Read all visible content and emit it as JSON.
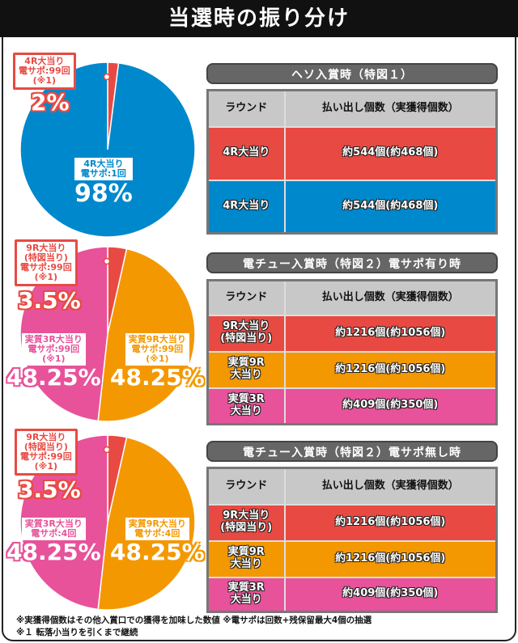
{
  "title": "当選時の振り分け",
  "colors": {
    "blue": "#0088cc",
    "red": "#e84a43",
    "orange": "#f39800",
    "pink": "#e8529a"
  },
  "chart_data": [
    {
      "type": "pie",
      "slices": [
        {
          "label": "4R大当り 電サポ:99回 (※1)",
          "value": 2,
          "pct_text": "2%",
          "color": "#e84a43"
        },
        {
          "label": "4R大当り 電サポ:1回",
          "value": 98,
          "pct_text": "98%",
          "color": "#0088cc"
        }
      ]
    },
    {
      "type": "pie",
      "slices": [
        {
          "label": "9R大当り (特図当り) 電サポ:99回 (※1)",
          "value": 3.5,
          "pct_text": "3.5%",
          "color": "#e84a43"
        },
        {
          "label": "実質9R大当り 電サポ:99回 (※1)",
          "value": 48.25,
          "pct_text": "48.25%",
          "color": "#f39800"
        },
        {
          "label": "実質3R大当り 電サポ:99回 (※1)",
          "value": 48.25,
          "pct_text": "48.25%",
          "color": "#e8529a"
        }
      ]
    },
    {
      "type": "pie",
      "slices": [
        {
          "label": "9R大当り (特図当り) 電サポ:99回 (※1)",
          "value": 3.5,
          "pct_text": "3.5%",
          "color": "#e84a43"
        },
        {
          "label": "実質9R大当り 電サポ:4回",
          "value": 48.25,
          "pct_text": "48.25%",
          "color": "#f39800"
        },
        {
          "label": "実質3R大当り 電サポ:4回",
          "value": 48.25,
          "pct_text": "48.25%",
          "color": "#e8529a"
        }
      ]
    }
  ],
  "pie1": {
    "red": [
      "4R大当り",
      "電サポ:99回",
      "(※1)"
    ],
    "red_pct": "2%",
    "blue": [
      "4R大当り",
      "電サポ:1回"
    ],
    "blue_pct": "98%"
  },
  "pie2": {
    "red": [
      "9R大当り",
      "(特図当り)",
      "電サポ:99回",
      "(※1)"
    ],
    "red_pct": "3.5%",
    "pink": [
      "実質3R大当り",
      "電サポ:99回",
      "(※1)"
    ],
    "pink_pct": "48.25%",
    "orange": [
      "実質9R大当り",
      "電サポ:99回",
      "(※1)"
    ],
    "orange_pct": "48.25%"
  },
  "pie3": {
    "red": [
      "9R大当り",
      "(特図当り)",
      "電サポ:99回",
      "(※1)"
    ],
    "red_pct": "3.5%",
    "pink": [
      "実質3R大当り",
      "電サポ:4回"
    ],
    "pink_pct": "48.25%",
    "orange": [
      "実質9R大当り",
      "電サポ:4回"
    ],
    "orange_pct": "48.25%"
  },
  "tables": [
    {
      "heading": "ヘソ入賞時（特図１）",
      "headers": [
        "ラウンド",
        "払い出し個数（実獲得個数）"
      ],
      "rows": [
        [
          "4R大当り",
          "約544個(約468個)"
        ],
        [
          "4R大当り",
          "約544個(約468個)"
        ]
      ]
    },
    {
      "heading": "電チュー入賞時（特図２）電サポ有り時",
      "headers": [
        "ラウンド",
        "払い出し個数（実獲得個数）"
      ],
      "rows": [
        [
          "9R大当り\n(特図当り)",
          "約1216個(約1056個)"
        ],
        [
          "実質9R\n大当り",
          "約1216個(約1056個)"
        ],
        [
          "実質3R\n大当り",
          "約409個(約350個)"
        ]
      ]
    },
    {
      "heading": "電チュー入賞時（特図２）電サポ無し時",
      "headers": [
        "ラウンド",
        "払い出し個数（実獲得個数）"
      ],
      "rows": [
        [
          "9R大当り\n(特図当り)",
          "約1216個(約1056個)"
        ],
        [
          "実質9R\n大当り",
          "約1216個(約1056個)"
        ],
        [
          "実質3R\n大当り",
          "約409個(約350個)"
        ]
      ]
    }
  ],
  "notes": [
    "※実獲得個数はその他入賞口での獲得を加味した数値 ※電サポは回数+残保留最大4個の抽選",
    "※１ 転落小当りを引くまで継続"
  ]
}
